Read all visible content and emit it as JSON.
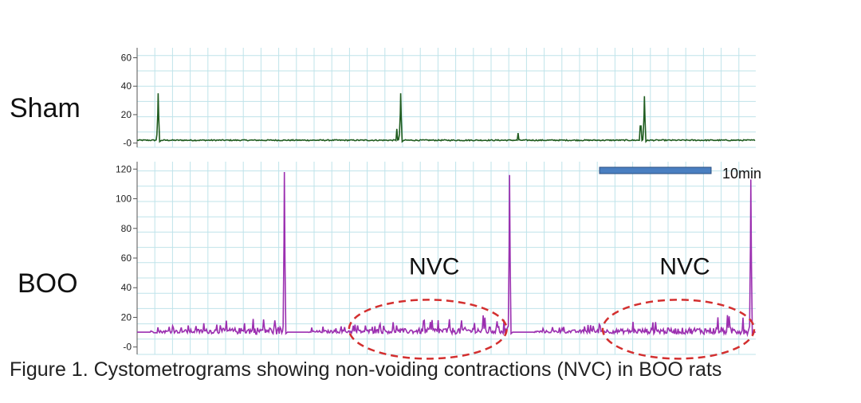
{
  "caption": "Figure 1. Cystometrograms showing non-voiding contractions (NVC) in BOO rats",
  "chart_data": [
    {
      "type": "line",
      "group_label": "Sham",
      "color": "#1f5c1f",
      "x_range_min": [
        0,
        50
      ],
      "ylim": [
        -3,
        67
      ],
      "y_ticks": [
        0,
        20,
        40,
        60
      ],
      "y_tick_labels": [
        "-0",
        "20",
        "40",
        "60"
      ],
      "grid": true,
      "baseline": 2,
      "spikes": [
        {
          "x": 1.7,
          "peak": 35
        },
        {
          "x": 21.3,
          "peak": 35
        },
        {
          "x": 41.0,
          "peak": 33
        }
      ],
      "small_bumps": [
        {
          "x": 21.0,
          "peak": 10
        },
        {
          "x": 30.8,
          "peak": 7
        },
        {
          "x": 40.7,
          "peak": 12
        }
      ]
    },
    {
      "type": "line",
      "group_label": "BOO",
      "color": "#9b2fb0",
      "x_range_min": [
        0,
        50
      ],
      "ylim": [
        -5,
        125
      ],
      "y_ticks": [
        0,
        20,
        40,
        60,
        80,
        100,
        120
      ],
      "y_tick_labels": [
        "-0",
        "20",
        "40",
        "60",
        "80",
        "100",
        "120"
      ],
      "grid": true,
      "baseline": 10,
      "spikes": [
        {
          "x": 11.9,
          "peak": 118
        },
        {
          "x": 30.1,
          "peak": 116
        },
        {
          "x": 49.6,
          "peak": 113
        }
      ],
      "annotations": [
        {
          "text": "NVC",
          "x_start": 17.0,
          "x_end": 30.0,
          "y_center": 12
        },
        {
          "text": "NVC",
          "x_start": 37.5,
          "x_end": 50.0,
          "y_center": 12
        }
      ],
      "scale_bar": {
        "label": "10min",
        "duration_min": 10,
        "color": "#4a7fc1"
      }
    }
  ]
}
